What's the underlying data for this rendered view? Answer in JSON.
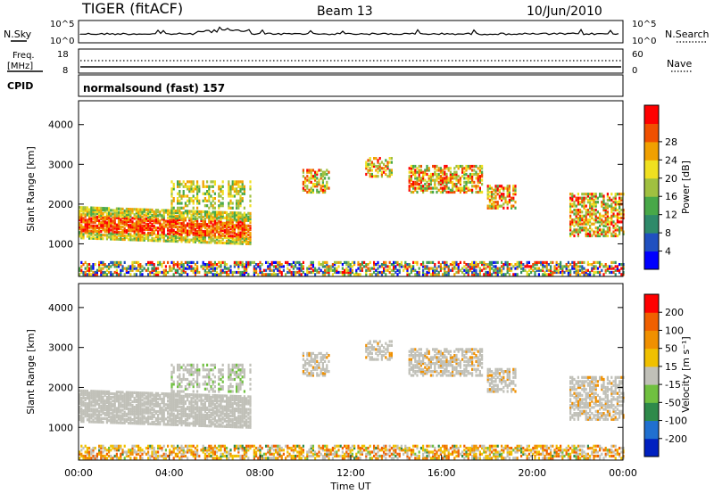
{
  "header": {
    "radar": "TIGER (fitACF)",
    "beam": "Beam 13",
    "date": "10/Jun/2010"
  },
  "strip_labels": {
    "nsky": "N.Sky",
    "nsearch": "N.Search",
    "freq_top": "Freq.",
    "freq_unit": "[MHz]",
    "nave": "Nave",
    "cpid": "CPID",
    "cpid_value": "normalsound (fast) 157",
    "noise_ticks_left": [
      "10^5",
      "10^0"
    ],
    "noise_ticks_right": [
      "10^5",
      "10^0"
    ],
    "freq_ticks": [
      "18",
      "8"
    ],
    "nave_ticks": [
      "60",
      "0"
    ]
  },
  "chart_data": [
    {
      "type": "heatmap",
      "title": "",
      "ylabel": "Slant Range [km]",
      "xlabel": "",
      "ylim": [
        180,
        4600
      ],
      "yticks": [
        "1000",
        "2000",
        "3000",
        "4000"
      ],
      "colorbar": {
        "label": "Power [dB]",
        "ticks": [
          "4",
          "8",
          "12",
          "16",
          "20",
          "24",
          "28"
        ],
        "colors": [
          "#0000ff",
          "#2050c0",
          "#2e8a6a",
          "#48a848",
          "#a0c040",
          "#f0e020",
          "#f0a000",
          "#f05000",
          "#ff0000"
        ]
      }
    },
    {
      "type": "heatmap",
      "title": "",
      "ylabel": "Slant Range [km]",
      "xlabel": "Time UT",
      "ylim": [
        180,
        4600
      ],
      "yticks": [
        "1000",
        "2000",
        "3000",
        "4000"
      ],
      "xticks": [
        "00:00",
        "04:00",
        "08:00",
        "12:00",
        "16:00",
        "20:00",
        "00:00"
      ],
      "colorbar": {
        "label": "Velocity [m s⁻¹]",
        "ticks": [
          "200",
          "100",
          "50",
          "15",
          "-15",
          "-50",
          "-100",
          "-200"
        ],
        "colors": [
          "#0020c0",
          "#2070d0",
          "#2e8a4a",
          "#70c040",
          "#c0c0b8",
          "#f0c000",
          "#f09000",
          "#f06000",
          "#ff0000"
        ]
      }
    }
  ]
}
